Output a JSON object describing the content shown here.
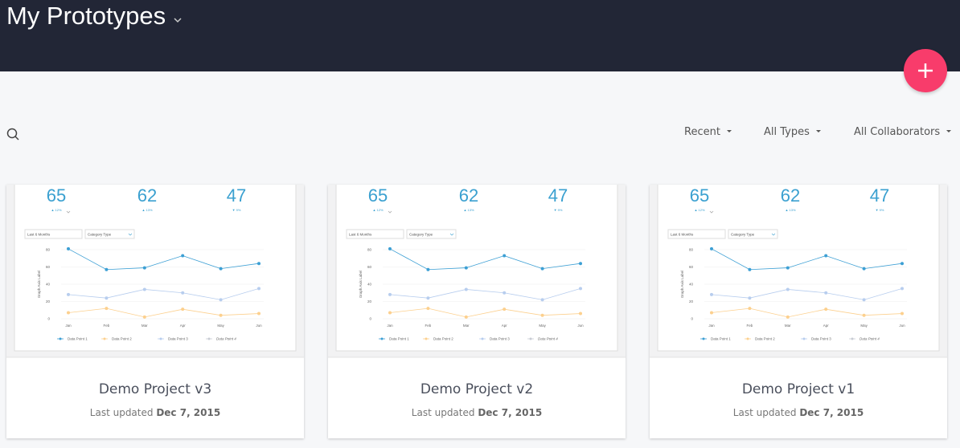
{
  "header": {
    "title": "My Prototypes"
  },
  "filters": [
    "Recent",
    "All Types",
    "All Collaborators"
  ],
  "preview": {
    "stats": [
      {
        "value": "65",
        "change": "▲ 12%"
      },
      {
        "value": "62",
        "change": "▲ 13%"
      },
      {
        "value": "47",
        "change": "▼ 9%"
      }
    ],
    "dropdowns": [
      "Last 6 Months",
      "Category Type"
    ],
    "chart": {
      "type": "line",
      "y_label": "Graph Axis Label",
      "categories": [
        "Jan",
        "Feb",
        "Mar",
        "Apr",
        "May",
        "Jun"
      ],
      "ylim": [
        0,
        80
      ],
      "yticks": [
        0,
        20,
        40,
        60,
        80
      ],
      "grid": true,
      "series": [
        {
          "name": "Data Point 1",
          "color": "#3c9fd4",
          "values": [
            81,
            57,
            59,
            73,
            58,
            64
          ]
        },
        {
          "name": "Data Point 2",
          "color": "#fcd08e",
          "values": [
            7,
            12,
            2,
            11,
            4,
            6
          ]
        },
        {
          "name": "Data Point 3",
          "color": "#b7cdee",
          "values": [
            28,
            24,
            34,
            30,
            22,
            35
          ]
        },
        {
          "name": "Data Point 4",
          "color": "#c8ccd4",
          "values": [
            null,
            null,
            null,
            null,
            null,
            null
          ]
        }
      ]
    }
  },
  "cards": [
    {
      "title": "Demo Project v3",
      "updated_label": "Last updated",
      "date": "Dec 7, 2015"
    },
    {
      "title": "Demo Project v2",
      "updated_label": "Last updated",
      "date": "Dec 7, 2015"
    },
    {
      "title": "Demo Project v1",
      "updated_label": "Last updated",
      "date": "Dec 7, 2015"
    }
  ]
}
